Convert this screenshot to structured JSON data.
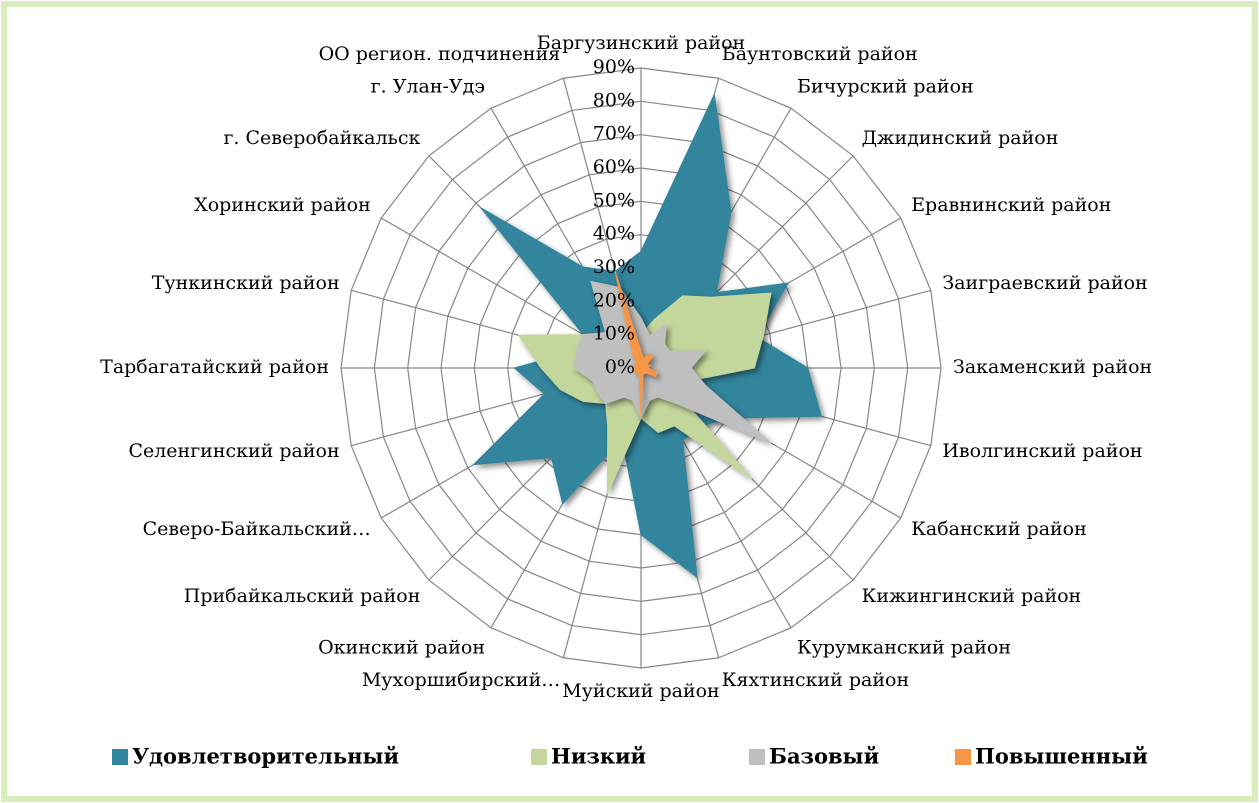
{
  "chart_data": {
    "type": "radar",
    "categories": [
      "Баргузинский район",
      "Баунтовский район",
      "Бичурский район",
      "Джидинский район",
      "Еравнинский район",
      "Заиграевский район",
      "Закаменский район",
      "Иволгинский район",
      "Кабанский район",
      "Кижингинский район",
      "Курумканский район",
      "Кяхтинский район",
      "Муйский район",
      "Мухоршибирский…",
      "Окинский район",
      "Прибайкальский район",
      "Северо-Байкальский…",
      "Селенгинский район",
      "Тарбагатайский район",
      "Тункинский район",
      "Хоринский район",
      "г. Северобайкальск",
      "г. Улан-Удэ",
      "ОО регион. подчинения"
    ],
    "series": [
      {
        "name": "Удовлетворительный",
        "color": "#31859c",
        "values": [
          35,
          85,
          54,
          32,
          51,
          36,
          50,
          56,
          30,
          25,
          25,
          65,
          50,
          22,
          47,
          38,
          58,
          30,
          38,
          20,
          20,
          68,
          35,
          30
        ]
      },
      {
        "name": "Низкий",
        "color": "#c3d69b",
        "values": [
          10,
          15,
          25,
          30,
          45,
          38,
          34,
          15,
          10,
          47,
          20,
          20,
          15,
          39,
          20,
          15,
          20,
          25,
          30,
          38,
          20,
          15,
          10,
          10
        ]
      },
      {
        "name": "Базовый",
        "color": "#bfbfbf",
        "values": [
          15,
          10,
          15,
          10,
          10,
          20,
          15,
          20,
          45,
          15,
          10,
          10,
          15,
          10,
          10,
          15,
          15,
          15,
          20,
          20,
          20,
          15,
          30,
          25
        ]
      },
      {
        "name": "Повышенный",
        "color": "#f79646",
        "values": [
          5,
          3,
          5,
          5,
          2,
          3,
          2,
          5,
          5,
          2,
          2,
          2,
          15,
          2,
          2,
          2,
          2,
          2,
          2,
          2,
          2,
          2,
          5,
          30
        ]
      }
    ],
    "ylim": [
      0,
      90
    ],
    "yticks": [
      {
        "value": 0,
        "label": "0%"
      },
      {
        "value": 10,
        "label": "10%"
      },
      {
        "value": 20,
        "label": "20%"
      },
      {
        "value": 30,
        "label": "30%"
      },
      {
        "value": 40,
        "label": "40%"
      },
      {
        "value": 50,
        "label": "50%"
      },
      {
        "value": 60,
        "label": "60%"
      },
      {
        "value": 70,
        "label": "70%"
      },
      {
        "value": 80,
        "label": "80%"
      },
      {
        "value": 90,
        "label": "90%"
      }
    ],
    "grid": true,
    "legend": "bottom"
  }
}
